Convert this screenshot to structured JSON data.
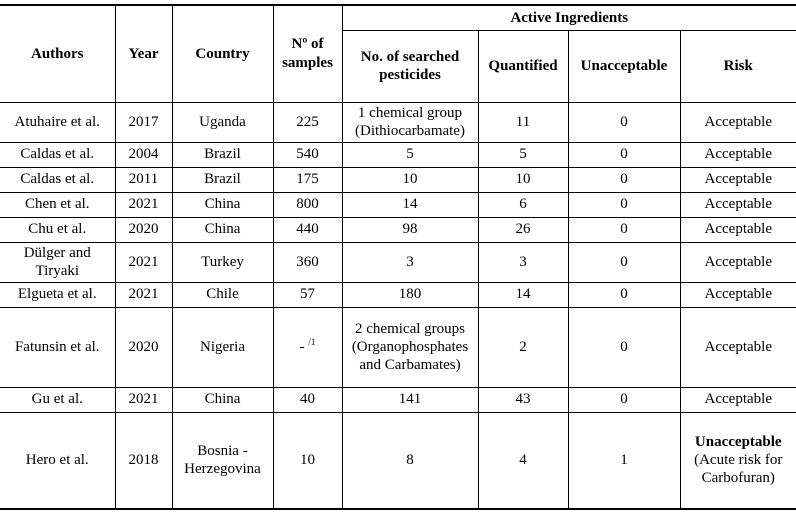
{
  "colors": {
    "border": "#000000",
    "text": "#000000",
    "background": "#ffffff"
  },
  "table": {
    "header": {
      "authors": "Authors",
      "year": "Year",
      "country": "Country",
      "samples": "Nº of\nsamples",
      "active_ingredients": "Active Ingredients",
      "searched": "No. of searched\npesticides",
      "quantified": "Quantified",
      "unacceptable": "Unacceptable",
      "risk": "Risk"
    },
    "rows": [
      [
        "Atuhaire et al.",
        "2017",
        "Uganda",
        "225",
        "1 chemical group\n(Dithiocarbamate)",
        "11",
        "0",
        "Acceptable"
      ],
      [
        "Caldas et al.",
        "2004",
        "Brazil",
        "540",
        "5",
        "5",
        "0",
        "Acceptable"
      ],
      [
        "Caldas et al.",
        "2011",
        "Brazil",
        "175",
        "10",
        "10",
        "0",
        "Acceptable"
      ],
      [
        "Chen et al.",
        "2021",
        "China",
        "800",
        "14",
        "6",
        "0",
        "Acceptable"
      ],
      [
        "Chu et al.",
        "2020",
        "China",
        "440",
        "98",
        "26",
        "0",
        "Acceptable"
      ],
      [
        "Dülger and\nTiryaki",
        "2021",
        "Turkey",
        "360",
        "3",
        "3",
        "0",
        "Acceptable"
      ],
      [
        "Elgueta et al.",
        "2021",
        "Chile",
        "57",
        "180",
        "14",
        "0",
        "Acceptable"
      ],
      [
        "Fatunsin et al.",
        "2020",
        "Nigeria",
        {
          "text": "- ",
          "sup": "/1"
        },
        "2 chemical groups\n(Organophosphates\nand Carbamates)",
        "2",
        "0",
        "Acceptable"
      ],
      [
        "Gu et al.",
        "2021",
        "China",
        "40",
        "141",
        "43",
        "0",
        "Acceptable"
      ],
      [
        "Hero et al.",
        "2018",
        "Bosnia -\nHerzegovina",
        "10",
        "8",
        "4",
        "1",
        {
          "bold": "Unacceptable",
          "text": "\n(Acute risk for\nCarbofuran)"
        }
      ]
    ]
  }
}
